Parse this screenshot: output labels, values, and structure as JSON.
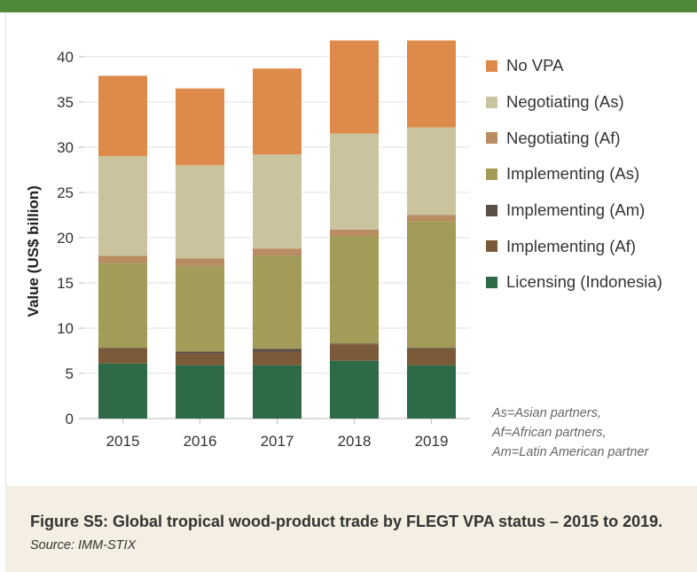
{
  "colors": {
    "top_bar": "#4e8a3a",
    "caption_bg": "#f4efe2",
    "gridline": "#e2e2e2"
  },
  "caption": {
    "title": "Figure S5: Global tropical wood-product trade by FLEGT VPA status – 2015 to 2019.",
    "source": "Source: IMM-STIX"
  },
  "notes": [
    "As=Asian partners,",
    "Af=African partners,",
    "Am=Latin American partner"
  ],
  "chart_data": {
    "type": "bar",
    "stacked": true,
    "ylabel": "Value (US$ billion)",
    "xlabel": "",
    "ylim": [
      0,
      40
    ],
    "yticks": [
      0,
      5,
      10,
      15,
      20,
      25,
      30,
      35,
      40
    ],
    "grid": true,
    "legend_position": "right",
    "categories": [
      "2015",
      "2016",
      "2017",
      "2018",
      "2019"
    ],
    "series": [
      {
        "name": "Licensing (Indonesia)",
        "color": "#2e6a46",
        "values": [
          6.1,
          5.9,
          5.9,
          6.4,
          5.9
        ]
      },
      {
        "name": "Implementing (Af)",
        "color": "#7a5a38",
        "values": [
          1.6,
          1.3,
          1.5,
          1.8,
          1.8
        ]
      },
      {
        "name": "Implementing (Am)",
        "color": "#5a5048",
        "values": [
          0.1,
          0.2,
          0.3,
          0.1,
          0.1
        ]
      },
      {
        "name": "Implementing (As)",
        "color": "#a39b58",
        "values": [
          9.4,
          9.5,
          10.3,
          11.9,
          14.0
        ]
      },
      {
        "name": "Negotiating (Af)",
        "color": "#b98c62",
        "values": [
          0.8,
          0.8,
          0.8,
          0.7,
          0.7
        ]
      },
      {
        "name": "Negotiating (As)",
        "color": "#c9c49e",
        "values": [
          11.0,
          10.3,
          10.4,
          10.6,
          9.7
        ]
      },
      {
        "name": "No VPA",
        "color": "#de8a4b",
        "values": [
          8.9,
          8.5,
          9.5,
          10.3,
          9.6
        ]
      }
    ]
  }
}
